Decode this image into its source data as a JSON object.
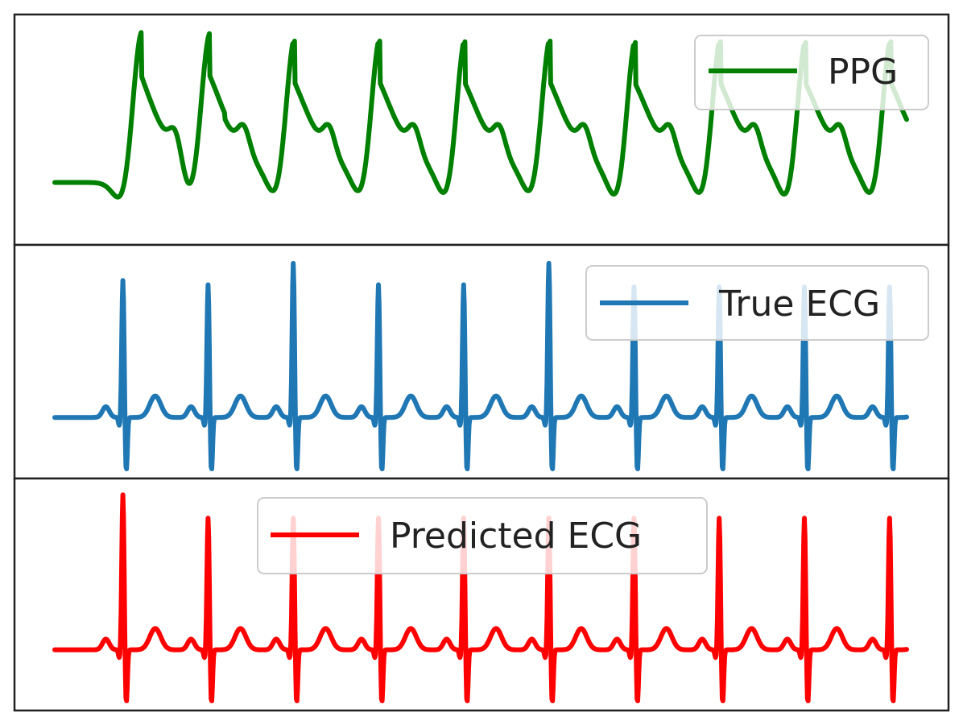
{
  "chart_data": [
    {
      "type": "line",
      "title": "",
      "xlabel": "",
      "ylabel": "",
      "grid": false,
      "legend": {
        "placement": "top-right",
        "entries": [
          "PPG"
        ]
      },
      "color": "#008000",
      "series": [
        {
          "name": "PPG",
          "beats": [
            1.0,
            1.8,
            2.8,
            3.8,
            4.8,
            5.8,
            6.8,
            7.8,
            8.8,
            9.8
          ],
          "peak_heights": [
            0.96,
            0.93,
            0.93,
            0.93,
            0.93,
            0.93,
            0.93,
            0.93,
            0.93,
            0.93
          ],
          "trough_heights": [
            0.08,
            0.02,
            0.05,
            0.05,
            0.04,
            0.05,
            0.03,
            0.04,
            0.03,
            0.04
          ]
        }
      ],
      "xlim": [
        0,
        10
      ],
      "ylim": [
        0,
        1
      ]
    },
    {
      "type": "line",
      "title": "",
      "xlabel": "",
      "ylabel": "",
      "grid": false,
      "legend": {
        "placement": "top-right",
        "entries": [
          "True ECG"
        ]
      },
      "color": "#1f77b4",
      "series": [
        {
          "name": "True ECG",
          "beats": [
            0.8,
            1.8,
            2.8,
            3.8,
            4.8,
            5.8,
            6.8,
            7.8,
            8.8,
            9.8
          ],
          "r_heights": [
            0.88,
            0.86,
            0.96,
            0.86,
            0.86,
            0.96,
            0.85,
            0.85,
            0.85,
            0.85
          ],
          "s_depths": [
            0.97,
            0.97,
            0.97,
            0.97,
            0.96,
            0.97,
            0.97,
            0.97,
            0.96,
            0.96
          ]
        }
      ],
      "xlim": [
        0,
        10
      ],
      "ylim": [
        0,
        1
      ]
    },
    {
      "type": "line",
      "title": "",
      "xlabel": "",
      "ylabel": "",
      "grid": false,
      "legend": {
        "placement": "top-center",
        "entries": [
          "Predicted ECG"
        ]
      },
      "color": "#ff0000",
      "series": [
        {
          "name": "Predicted ECG",
          "beats": [
            0.8,
            1.8,
            2.8,
            3.8,
            4.8,
            5.8,
            6.8,
            7.8,
            8.8,
            9.8
          ],
          "r_heights": [
            0.97,
            0.86,
            0.86,
            0.86,
            0.86,
            0.86,
            0.86,
            0.86,
            0.86,
            0.86
          ],
          "s_depths": [
            0.97,
            0.97,
            0.97,
            0.97,
            0.97,
            0.97,
            0.97,
            0.97,
            0.97,
            0.97
          ]
        }
      ],
      "xlim": [
        0,
        10
      ],
      "ylim": [
        0,
        1
      ]
    }
  ]
}
